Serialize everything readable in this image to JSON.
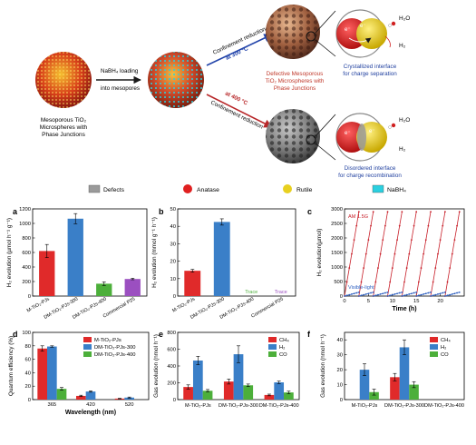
{
  "scheme": {
    "left_caption": [
      "Mesoporous TiO₂",
      "Microspheres with",
      "Phase Junctions"
    ],
    "loading_label": [
      "NaBH₄ loading",
      "into mesopores"
    ],
    "upper_arrow": [
      "Confinement reduction",
      "at 300 °C"
    ],
    "lower_arrow": [
      "at 400 °C",
      "Confinement reduction"
    ],
    "mid_caption": [
      "Defective Mesoporous",
      "TiO₂ Microspheres with",
      "Phase Junctions"
    ],
    "upper_right_caption": [
      "Crystallized interface",
      "for charge separation"
    ],
    "lower_right_caption": [
      "Disordered interface",
      "for charge recombination"
    ],
    "electron": "e⁻",
    "h2o": "H₂O",
    "h2": "H₂",
    "colors": {
      "red_text": "#c0392b",
      "blue_text": "#1f3f9f",
      "blue_arrow": "#2244aa",
      "red_arrow": "#b8282a"
    }
  },
  "legend": [
    {
      "name": "Defects",
      "color": "#9a9a9a",
      "shape": "square"
    },
    {
      "name": "Anatase",
      "color": "#e02020",
      "shape": "circle"
    },
    {
      "name": "Rutile",
      "color": "#e8d020",
      "shape": "circle"
    },
    {
      "name": "NaBH₄",
      "color": "#2ad0e0",
      "shape": "square"
    }
  ],
  "panel_letters": [
    "a",
    "b",
    "c",
    "d",
    "e",
    "f"
  ],
  "chart_data": [
    {
      "panel": "a",
      "type": "bar",
      "ylabel": "H₂ evolution (µmol h⁻¹ g⁻¹)",
      "ylim": [
        0,
        1200
      ],
      "yticks": [
        0,
        200,
        400,
        600,
        800,
        1000,
        1200
      ],
      "categories": [
        "M-TiO₂-PJs",
        "DM-TiO₂-PJs-300",
        "DM-TiO₂-PJs-400",
        "Commercial P25"
      ],
      "values": [
        620,
        1065,
        170,
        235
      ],
      "errors": [
        90,
        70,
        25,
        10
      ],
      "colors": [
        "#e02a2a",
        "#3a7fc8",
        "#4caf3a",
        "#9b4fc0"
      ]
    },
    {
      "panel": "b",
      "type": "bar",
      "ylabel": "H₂ evolution (mmol g⁻¹ h⁻¹)",
      "ylim": [
        0,
        50
      ],
      "yticks": [
        0,
        10,
        20,
        30,
        40,
        50
      ],
      "categories": [
        "M-TiO₂-PJs",
        "DM-TiO₂-PJs-300",
        "DM-TiO₂-PJs-400",
        "Commercial P25"
      ],
      "values": [
        14.5,
        42.5,
        0,
        0
      ],
      "errors": [
        0.8,
        1.8,
        0,
        0
      ],
      "colors": [
        "#e02a2a",
        "#3a7fc8",
        "#4caf3a",
        "#9b4fc0"
      ],
      "annotations": [
        "Trace",
        "Trace"
      ]
    },
    {
      "panel": "c",
      "type": "line",
      "xlabel": "Time (h)",
      "ylabel": "H₂ evolution(µmol)",
      "xlim": [
        0,
        25
      ],
      "ylim": [
        0,
        3000
      ],
      "xticks": [
        0,
        5,
        10,
        15,
        20
      ],
      "yticks": [
        0,
        500,
        1000,
        1500,
        2000,
        2500,
        3000
      ],
      "series": [
        {
          "name": "AM 1.5G",
          "color": "#c8202a",
          "cycle_starts": [
            0,
            3,
            6,
            9,
            12,
            15,
            18,
            21
          ],
          "cycle_length": 3,
          "peak": 2900
        },
        {
          "name": "Visible-light",
          "color": "#2d5fc0",
          "cycle_starts": [
            0,
            3,
            6,
            9,
            12,
            15,
            18,
            21
          ],
          "cycle_length": 3,
          "peak": 130
        }
      ]
    },
    {
      "panel": "d",
      "type": "bar",
      "xlabel": "Wavelength (nm)",
      "ylabel": "Quantum efficiency (%)",
      "ylim": [
        0,
        100
      ],
      "yticks": [
        0,
        20,
        40,
        60,
        80,
        100
      ],
      "categories": [
        "365",
        "420",
        "520"
      ],
      "series": [
        {
          "name": "M-TiO₂-PJs",
          "values": [
            76,
            5.5,
            1.5
          ],
          "errors": [
            4,
            1,
            0.5
          ],
          "color": "#e02a2a"
        },
        {
          "name": "DM-TiO₂-PJs-300",
          "values": [
            79,
            12,
            3
          ],
          "errors": [
            1,
            1,
            0.8
          ],
          "color": "#3a7fc8"
        },
        {
          "name": "DM-TiO₂-PJs-400",
          "values": [
            16,
            0,
            0
          ],
          "errors": [
            2,
            0,
            0
          ],
          "color": "#4caf3a"
        }
      ]
    },
    {
      "panel": "e",
      "type": "bar",
      "ylabel": "Gas evolution (nmol h⁻¹)",
      "ylim": [
        0,
        800
      ],
      "yticks": [
        0,
        200,
        400,
        600,
        800
      ],
      "categories": [
        "M-TiO₂-PJs",
        "DM-TiO₂-PJs-300",
        "DM-TiO₂-PJs-400"
      ],
      "series": [
        {
          "name": "CH₄",
          "values": [
            150,
            215,
            55
          ],
          "errors": [
            25,
            30,
            10
          ],
          "color": "#e02a2a"
        },
        {
          "name": "H₂",
          "values": [
            465,
            540,
            205
          ],
          "errors": [
            50,
            100,
            15
          ],
          "color": "#3a7fc8"
        },
        {
          "name": "CO",
          "values": [
            105,
            170,
            85
          ],
          "errors": [
            15,
            15,
            15
          ],
          "color": "#4caf3a"
        }
      ]
    },
    {
      "panel": "f",
      "type": "bar",
      "ylabel": "Gas evolution (nmol h⁻¹)",
      "ylim": [
        0,
        45
      ],
      "yticks": [
        0,
        10,
        20,
        30,
        40
      ],
      "categories": [
        "M-TiO₂-PJs",
        "DM-TiO₂-PJs-300",
        "DM-TiO₂-PJs-400"
      ],
      "series": [
        {
          "name": "CH₄",
          "values": [
            0,
            15,
            0
          ],
          "errors": [
            0,
            2.5,
            0
          ],
          "color": "#e02a2a"
        },
        {
          "name": "H₂",
          "values": [
            20,
            35,
            0
          ],
          "errors": [
            4,
            5,
            0
          ],
          "color": "#3a7fc8"
        },
        {
          "name": "CO",
          "values": [
            5,
            10,
            0
          ],
          "errors": [
            2,
            2,
            0
          ],
          "color": "#4caf3a"
        }
      ]
    }
  ]
}
